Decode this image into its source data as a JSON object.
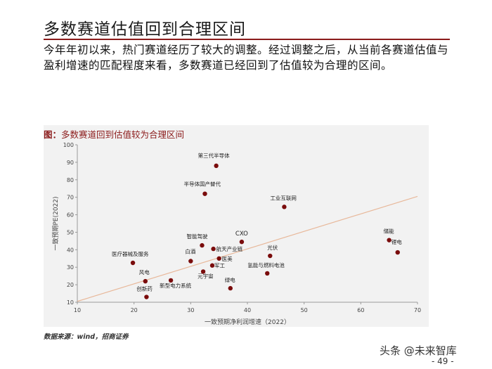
{
  "page": {
    "title": "多数赛道估值回到合理区间",
    "intro": "今年年初以来，热门赛道经历了较大的调整。经过调整之后，从当前各赛道估值与盈利增速的匹配程度来看，多数赛道已经回到了估值较为合理的区间。",
    "source": "数据来源：wind，招商证券",
    "watermark": "头条 @未来智库",
    "page_number": "- 49 -"
  },
  "colors": {
    "accent": "#8b1a1a",
    "point": "#7a0c0c",
    "trend_line": "#e8b89a",
    "figure_bg": "#f2f2f2"
  },
  "chart_data": {
    "type": "scatter",
    "title": "图：多数赛道回到估值较为合理区间",
    "title_prefix": "图：",
    "title_text": "多数赛道回到估值较为合理区间",
    "xlabel": "一致预期净利润增速（2022）",
    "ylabel": "一致预期PE(2022)",
    "xlim": [
      10,
      70
    ],
    "ylim": [
      10,
      100
    ],
    "xticks": [
      10,
      20,
      30,
      40,
      50,
      60,
      70
    ],
    "yticks": [
      10,
      20,
      30,
      40,
      50,
      60,
      70,
      80,
      90,
      100
    ],
    "grid": false,
    "trend_line": [
      [
        10,
        10.5
      ],
      [
        70,
        70.5
      ]
    ],
    "points": [
      {
        "label": "第三代半导体",
        "x": 34.5,
        "y": 88
      },
      {
        "label": "半导体国产替代",
        "x": 32.5,
        "y": 72
      },
      {
        "label": "工业互联网",
        "x": 46.5,
        "y": 64.5
      },
      {
        "label": "智能驾驶",
        "x": 32,
        "y": 42.5
      },
      {
        "label": "CXO",
        "x": 39,
        "y": 44.5
      },
      {
        "label": "航天产业链",
        "x": 34,
        "y": 40.5
      },
      {
        "label": "白酒",
        "x": 30,
        "y": 33.5
      },
      {
        "label": "医美",
        "x": 35,
        "y": 35
      },
      {
        "label": "元宇宙",
        "x": 32.2,
        "y": 27.5
      },
      {
        "label": "军工",
        "x": 33.8,
        "y": 31
      },
      {
        "label": "光伏",
        "x": 44,
        "y": 36.5
      },
      {
        "label": "氢能与燃料电池",
        "x": 43.5,
        "y": 26.5
      },
      {
        "label": "医疗器械及服务",
        "x": 19.8,
        "y": 32.5
      },
      {
        "label": "风电",
        "x": 22,
        "y": 22
      },
      {
        "label": "新型电力系统",
        "x": 26.5,
        "y": 22.5
      },
      {
        "label": "创新药",
        "x": 22.2,
        "y": 13
      },
      {
        "label": "绿电",
        "x": 37,
        "y": 18
      },
      {
        "label": "储能",
        "x": 65,
        "y": 45.5
      },
      {
        "label": "锂电",
        "x": 66.5,
        "y": 38.5
      }
    ]
  }
}
